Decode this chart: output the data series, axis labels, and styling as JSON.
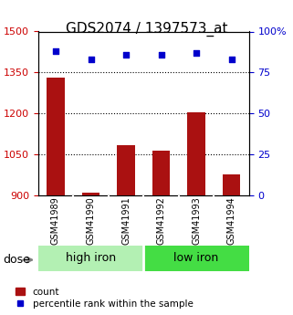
{
  "title": "GDS2074 / 1397573_at",
  "samples": [
    "GSM41989",
    "GSM41990",
    "GSM41991",
    "GSM41992",
    "GSM41993",
    "GSM41994"
  ],
  "counts": [
    1330,
    910,
    1085,
    1065,
    1205,
    975
  ],
  "percentiles": [
    88,
    83,
    86,
    86,
    87,
    83
  ],
  "groups": [
    "high iron",
    "high iron",
    "high iron",
    "low iron",
    "low iron",
    "low iron"
  ],
  "group_labels": [
    "high iron",
    "low iron"
  ],
  "group_colors": [
    "#b3f0b3",
    "#33cc33"
  ],
  "bar_color": "#aa1111",
  "dot_color": "#0000cc",
  "left_ylim": [
    900,
    1500
  ],
  "left_yticks": [
    900,
    1050,
    1200,
    1350,
    1500
  ],
  "right_ylim": [
    0,
    100
  ],
  "right_yticks": [
    0,
    25,
    50,
    75,
    100
  ],
  "right_yticklabels": [
    "0",
    "25",
    "50",
    "75",
    "100%"
  ],
  "left_tick_color": "#cc0000",
  "right_tick_color": "#0000cc",
  "background_color": "#ffffff",
  "plot_bg_color": "#ffffff",
  "dose_label": "dose",
  "legend_count_label": "count",
  "legend_pct_label": "percentile rank within the sample",
  "grid_color": "#000000",
  "label_area_color": "#cccccc",
  "bar_base": 900
}
